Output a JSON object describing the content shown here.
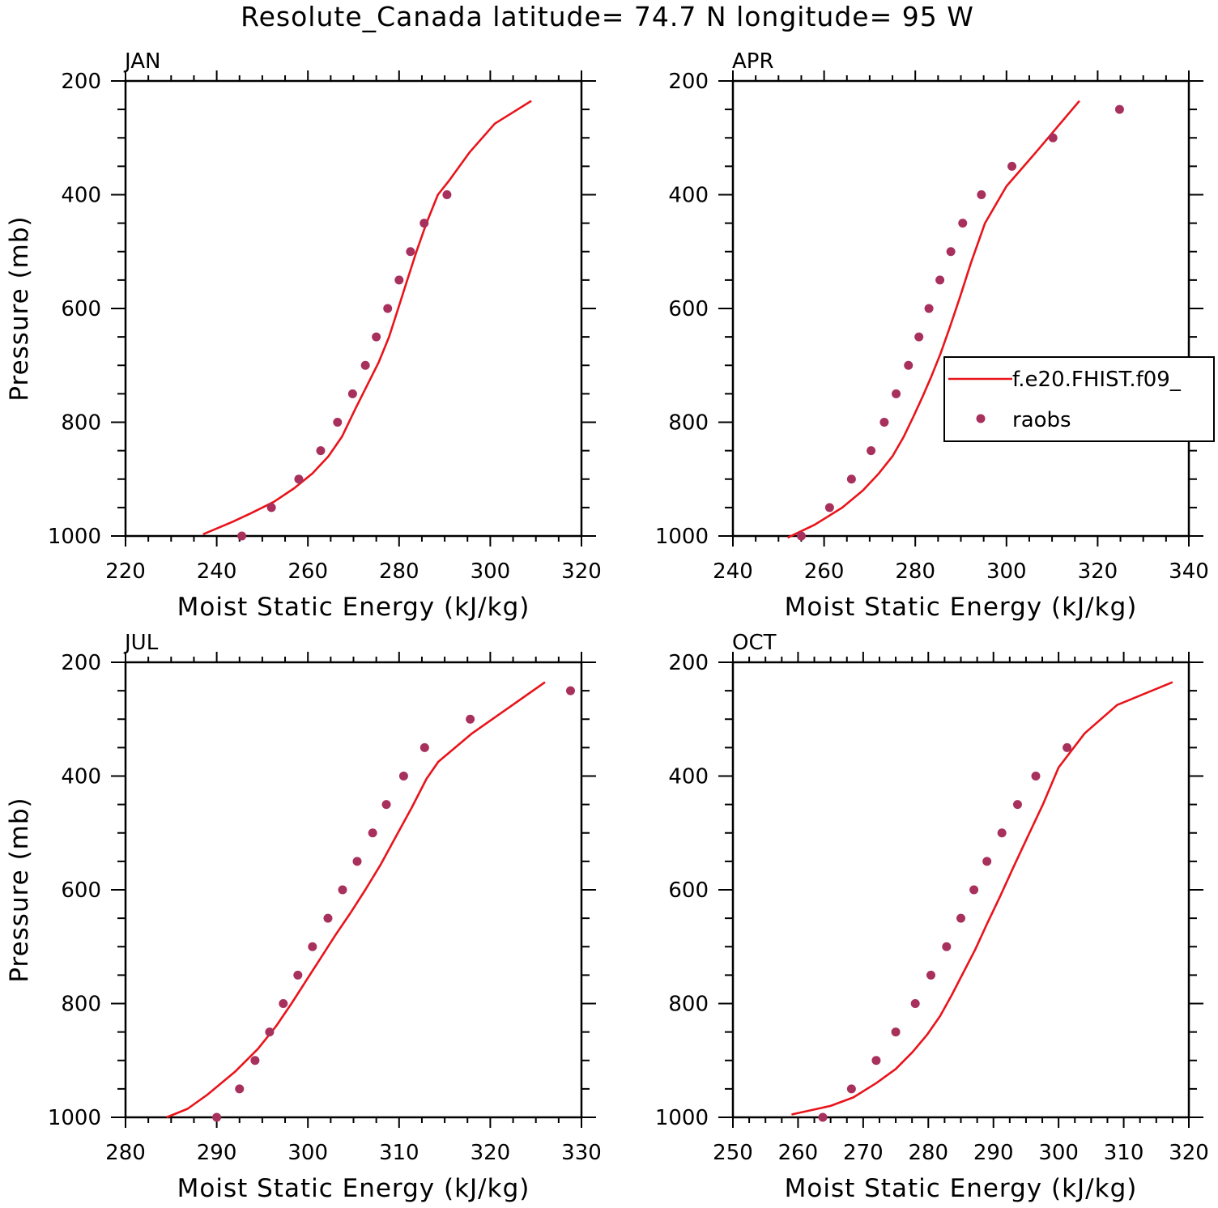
{
  "figure": {
    "title": "Resolute_Canada  latitude= 74.7 N longitude= 95 W",
    "legend": {
      "model_label": "f.e20.FHIST.f09_",
      "obs_label": "raobs",
      "model_color": "#e8141b",
      "obs_color": "#a8305c"
    }
  },
  "chart_data": [
    {
      "type": "line",
      "panel": "JAN",
      "xlabel": "Moist Static Energy (kJ/kg)",
      "ylabel": "Pressure (mb)",
      "xlim": [
        220,
        320
      ],
      "xticks": [
        220,
        240,
        260,
        280,
        300,
        320
      ],
      "ylim": [
        1000,
        200
      ],
      "yticks": [
        200,
        400,
        600,
        800,
        1000
      ],
      "y_inverted": true,
      "legend": false,
      "series": [
        {
          "kind": "line",
          "x": [
            237.0,
            243.5,
            247.5,
            252.5,
            257.0,
            261.0,
            264.5,
            267.5,
            270.5,
            273.0,
            275.5,
            277.8,
            279.8,
            281.8,
            283.8,
            286.0,
            288.5,
            291.0,
            295.5,
            301.0,
            309.0
          ],
          "y": [
            997,
            975,
            960,
            940,
            916,
            890,
            860,
            825,
            775,
            735,
            695,
            650,
            600,
            550,
            500,
            450,
            400,
            375,
            325,
            275,
            235
          ]
        },
        {
          "kind": "scatter",
          "x": [
            245.5,
            252.0,
            258.0,
            262.8,
            266.5,
            269.8,
            272.6,
            275.0,
            277.5,
            280.0,
            282.5,
            285.5,
            290.5
          ],
          "y": [
            1000,
            950,
            900,
            850,
            800,
            750,
            700,
            650,
            600,
            550,
            500,
            450,
            400
          ]
        }
      ]
    },
    {
      "type": "line",
      "panel": "APR",
      "xlabel": "Moist Static Energy (kJ/kg)",
      "ylabel": "",
      "xlim": [
        240,
        340
      ],
      "xticks": [
        240,
        260,
        280,
        300,
        320,
        340
      ],
      "ylim": [
        1000,
        200
      ],
      "yticks": [
        200,
        400,
        600,
        800,
        1000
      ],
      "y_inverted": true,
      "legend": true,
      "legend_position": "right",
      "series": [
        {
          "kind": "line",
          "x": [
            252.0,
            258.0,
            264.0,
            268.5,
            272.0,
            275.0,
            277.5,
            279.6,
            281.6,
            283.5,
            285.5,
            287.5,
            289.8,
            292.2,
            295.3,
            300.0,
            306.5,
            316.0
          ],
          "y": [
            1003,
            980,
            950,
            920,
            890,
            860,
            825,
            790,
            755,
            720,
            680,
            635,
            580,
            520,
            450,
            385,
            325,
            235
          ]
        },
        {
          "kind": "scatter",
          "x": [
            255.0,
            261.2,
            266.0,
            270.3,
            273.2,
            275.8,
            278.5,
            280.8,
            283.0,
            285.4,
            287.8,
            290.4,
            294.5,
            301.2,
            310.2,
            324.8
          ],
          "y": [
            1000,
            950,
            900,
            850,
            800,
            750,
            700,
            650,
            600,
            550,
            500,
            450,
            400,
            350,
            300,
            250
          ]
        }
      ]
    },
    {
      "type": "line",
      "panel": "JUL",
      "xlabel": "Moist Static Energy (kJ/kg)",
      "ylabel": "Pressure (mb)",
      "xlim": [
        280,
        330
      ],
      "xticks": [
        280,
        290,
        300,
        310,
        320,
        330
      ],
      "ylim": [
        1000,
        200
      ],
      "yticks": [
        200,
        400,
        600,
        800,
        1000
      ],
      "y_inverted": true,
      "legend": false,
      "series": [
        {
          "kind": "line",
          "x": [
            284.5,
            286.8,
            289.0,
            292.0,
            294.5,
            296.5,
            298.2,
            299.8,
            301.4,
            303.0,
            304.7,
            306.3,
            308.0,
            309.7,
            311.4,
            313.0,
            314.3,
            318.0,
            326.0
          ],
          "y": [
            1000,
            985,
            960,
            920,
            880,
            840,
            800,
            760,
            720,
            680,
            640,
            600,
            555,
            505,
            455,
            405,
            375,
            325,
            235
          ]
        },
        {
          "kind": "scatter",
          "x": [
            290.0,
            292.5,
            294.2,
            295.8,
            297.3,
            298.9,
            300.5,
            302.2,
            303.8,
            305.4,
            307.1,
            308.6,
            310.5,
            312.8,
            317.8,
            328.8
          ],
          "y": [
            1000,
            950,
            900,
            850,
            800,
            750,
            700,
            650,
            600,
            550,
            500,
            450,
            400,
            350,
            300,
            250
          ]
        }
      ]
    },
    {
      "type": "line",
      "panel": "OCT",
      "xlabel": "Moist Static Energy (kJ/kg)",
      "ylabel": "",
      "xlim": [
        250,
        320
      ],
      "xticks": [
        250,
        260,
        270,
        280,
        290,
        300,
        310,
        320
      ],
      "ylim": [
        1000,
        200
      ],
      "yticks": [
        200,
        400,
        600,
        800,
        1000
      ],
      "y_inverted": true,
      "legend": false,
      "series": [
        {
          "kind": "line",
          "x": [
            259.0,
            265.0,
            268.5,
            272.0,
            275.0,
            277.6,
            279.8,
            281.8,
            283.6,
            285.4,
            287.2,
            289.0,
            291.0,
            293.0,
            295.2,
            297.6,
            300.0,
            304.0,
            309.0,
            317.5
          ],
          "y": [
            995,
            980,
            965,
            940,
            915,
            885,
            855,
            822,
            785,
            745,
            705,
            660,
            612,
            562,
            508,
            450,
            385,
            325,
            275,
            235
          ]
        },
        {
          "kind": "scatter",
          "x": [
            263.8,
            268.2,
            272.0,
            275.0,
            278.0,
            280.4,
            282.8,
            285.0,
            287.0,
            289.0,
            291.3,
            293.7,
            296.5,
            301.3
          ],
          "y": [
            1000,
            950,
            900,
            850,
            800,
            750,
            700,
            650,
            600,
            550,
            500,
            450,
            400,
            350
          ]
        }
      ]
    }
  ]
}
